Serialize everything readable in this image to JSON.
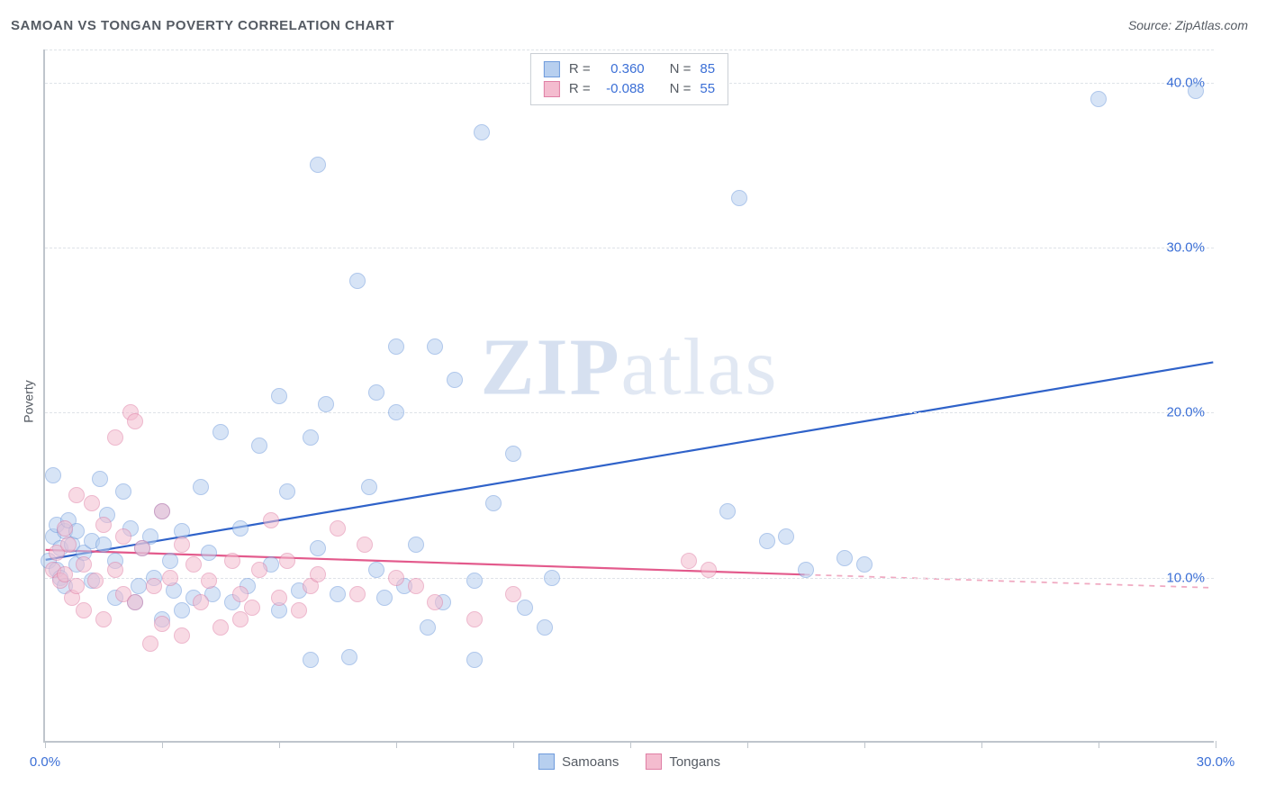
{
  "title": "SAMOAN VS TONGAN POVERTY CORRELATION CHART",
  "source_prefix": "Source: ",
  "source_name": "ZipAtlas.com",
  "ylabel": "Poverty",
  "watermark_bold": "ZIP",
  "watermark_rest": "atlas",
  "chart": {
    "type": "scatter",
    "background_color": "#ffffff",
    "grid_color": "#dfe3e8",
    "axis_color": "#bfc5cc",
    "xlim": [
      0,
      30
    ],
    "ylim": [
      0,
      42
    ],
    "xtick_positions": [
      0,
      3,
      6,
      9,
      12,
      15,
      18,
      21,
      24,
      27,
      30
    ],
    "xtick_labels": {
      "0": "0.0%",
      "30": "30.0%"
    },
    "ytick_positions": [
      10,
      20,
      30,
      40
    ],
    "ytick_labels": {
      "10": "10.0%",
      "20": "20.0%",
      "30": "30.0%",
      "40": "40.0%"
    },
    "label_color": "#3b6fd6",
    "label_fontsize": 15,
    "point_radius": 9,
    "series": [
      {
        "name": "Samoans",
        "fill_color": "#b7cfef",
        "stroke_color": "#6f9bdc",
        "fill_opacity": 0.55,
        "R_label": "R =",
        "R": "0.360",
        "N_label": "N =",
        "N": "85",
        "legend_value_color": "#3b6fd6",
        "trend": {
          "x1": 0,
          "y1": 11.0,
          "x2": 30,
          "y2": 23.0,
          "color": "#2f62c9",
          "width": 2.2,
          "dash": "none",
          "extend_dash_from": null
        },
        "points": [
          [
            0.1,
            11.0
          ],
          [
            0.2,
            12.5
          ],
          [
            0.3,
            13.2
          ],
          [
            0.3,
            10.5
          ],
          [
            0.4,
            10.0
          ],
          [
            0.4,
            11.8
          ],
          [
            0.5,
            12.8
          ],
          [
            0.5,
            9.5
          ],
          [
            0.6,
            13.5
          ],
          [
            0.7,
            12.0
          ],
          [
            0.8,
            12.8
          ],
          [
            0.8,
            10.8
          ],
          [
            1.0,
            11.5
          ],
          [
            1.2,
            12.2
          ],
          [
            1.2,
            9.8
          ],
          [
            1.4,
            16.0
          ],
          [
            1.5,
            12.0
          ],
          [
            1.6,
            13.8
          ],
          [
            1.8,
            11.0
          ],
          [
            1.8,
            8.8
          ],
          [
            2.0,
            15.2
          ],
          [
            2.2,
            13.0
          ],
          [
            2.3,
            8.5
          ],
          [
            2.4,
            9.5
          ],
          [
            2.5,
            11.8
          ],
          [
            2.7,
            12.5
          ],
          [
            2.8,
            10.0
          ],
          [
            3.0,
            14.0
          ],
          [
            3.0,
            7.5
          ],
          [
            3.2,
            11.0
          ],
          [
            3.3,
            9.2
          ],
          [
            3.5,
            12.8
          ],
          [
            3.5,
            8.0
          ],
          [
            3.8,
            8.8
          ],
          [
            4.0,
            15.5
          ],
          [
            4.2,
            11.5
          ],
          [
            4.3,
            9.0
          ],
          [
            4.5,
            18.8
          ],
          [
            4.8,
            8.5
          ],
          [
            5.0,
            13.0
          ],
          [
            5.2,
            9.5
          ],
          [
            5.5,
            18.0
          ],
          [
            5.8,
            10.8
          ],
          [
            6.0,
            21.0
          ],
          [
            6.0,
            8.0
          ],
          [
            6.2,
            15.2
          ],
          [
            6.5,
            9.2
          ],
          [
            6.8,
            18.5
          ],
          [
            6.8,
            5.0
          ],
          [
            7.0,
            11.8
          ],
          [
            7.0,
            35.0
          ],
          [
            7.2,
            20.5
          ],
          [
            7.5,
            9.0
          ],
          [
            7.8,
            5.2
          ],
          [
            8.0,
            28.0
          ],
          [
            8.3,
            15.5
          ],
          [
            8.5,
            10.5
          ],
          [
            8.5,
            21.2
          ],
          [
            8.7,
            8.8
          ],
          [
            9.0,
            24.0
          ],
          [
            9.0,
            20.0
          ],
          [
            9.2,
            9.5
          ],
          [
            9.5,
            12.0
          ],
          [
            9.8,
            7.0
          ],
          [
            10.0,
            24.0
          ],
          [
            10.2,
            8.5
          ],
          [
            10.5,
            22.0
          ],
          [
            11.0,
            9.8
          ],
          [
            11.0,
            5.0
          ],
          [
            11.2,
            37.0
          ],
          [
            11.5,
            14.5
          ],
          [
            12.0,
            17.5
          ],
          [
            12.3,
            8.2
          ],
          [
            12.8,
            7.0
          ],
          [
            13.0,
            10.0
          ],
          [
            17.5,
            14.0
          ],
          [
            17.8,
            33.0
          ],
          [
            18.5,
            12.2
          ],
          [
            19.0,
            12.5
          ],
          [
            19.5,
            10.5
          ],
          [
            20.5,
            11.2
          ],
          [
            21.0,
            10.8
          ],
          [
            27.0,
            39.0
          ],
          [
            29.5,
            39.5
          ],
          [
            0.2,
            16.2
          ]
        ]
      },
      {
        "name": "Tongans",
        "fill_color": "#f4bccf",
        "stroke_color": "#e07fa5",
        "fill_opacity": 0.55,
        "R_label": "R =",
        "R": "-0.088",
        "N_label": "N =",
        "N": "55",
        "legend_value_color": "#3b6fd6",
        "trend": {
          "x1": 0,
          "y1": 11.6,
          "x2": 19.5,
          "y2": 10.1,
          "color": "#e35a8c",
          "width": 2.2,
          "dash": "none",
          "extend_dash_from": 19.5,
          "extend_to": 30,
          "extend_y": 9.3,
          "extend_color": "#f0a9c1"
        },
        "points": [
          [
            0.2,
            10.5
          ],
          [
            0.3,
            11.5
          ],
          [
            0.4,
            9.8
          ],
          [
            0.5,
            13.0
          ],
          [
            0.5,
            10.2
          ],
          [
            0.6,
            12.0
          ],
          [
            0.7,
            8.8
          ],
          [
            0.8,
            9.5
          ],
          [
            0.8,
            15.0
          ],
          [
            1.0,
            10.8
          ],
          [
            1.0,
            8.0
          ],
          [
            1.2,
            14.5
          ],
          [
            1.3,
            9.8
          ],
          [
            1.5,
            13.2
          ],
          [
            1.5,
            7.5
          ],
          [
            1.8,
            10.5
          ],
          [
            1.8,
            18.5
          ],
          [
            2.0,
            9.0
          ],
          [
            2.0,
            12.5
          ],
          [
            2.2,
            20.0
          ],
          [
            2.3,
            8.5
          ],
          [
            2.3,
            19.5
          ],
          [
            2.5,
            11.8
          ],
          [
            2.7,
            6.0
          ],
          [
            2.8,
            9.5
          ],
          [
            3.0,
            14.0
          ],
          [
            3.0,
            7.2
          ],
          [
            3.2,
            10.0
          ],
          [
            3.5,
            12.0
          ],
          [
            3.5,
            6.5
          ],
          [
            3.8,
            10.8
          ],
          [
            4.0,
            8.5
          ],
          [
            4.2,
            9.8
          ],
          [
            4.5,
            7.0
          ],
          [
            4.8,
            11.0
          ],
          [
            5.0,
            9.0
          ],
          [
            5.0,
            7.5
          ],
          [
            5.3,
            8.2
          ],
          [
            5.5,
            10.5
          ],
          [
            5.8,
            13.5
          ],
          [
            6.0,
            8.8
          ],
          [
            6.2,
            11.0
          ],
          [
            6.5,
            8.0
          ],
          [
            6.8,
            9.5
          ],
          [
            7.0,
            10.2
          ],
          [
            7.5,
            13.0
          ],
          [
            8.0,
            9.0
          ],
          [
            8.2,
            12.0
          ],
          [
            9.0,
            10.0
          ],
          [
            9.5,
            9.5
          ],
          [
            10.0,
            8.5
          ],
          [
            11.0,
            7.5
          ],
          [
            12.0,
            9.0
          ],
          [
            16.5,
            11.0
          ],
          [
            17.0,
            10.5
          ]
        ]
      }
    ]
  }
}
